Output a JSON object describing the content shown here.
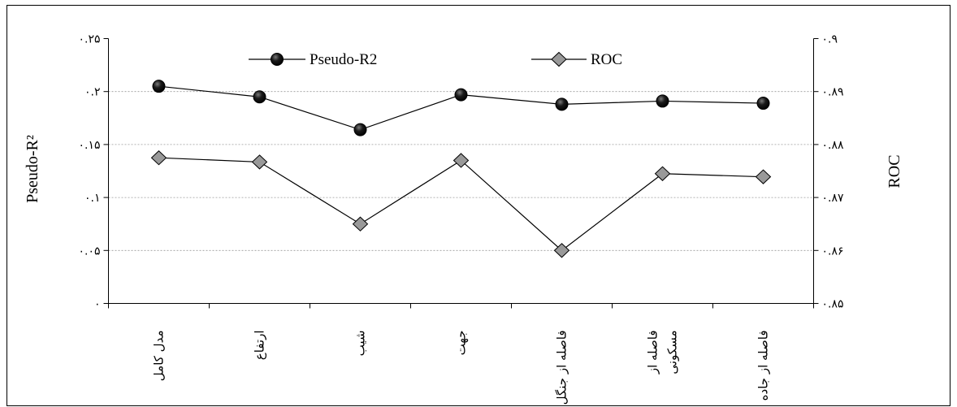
{
  "chart_data": {
    "type": "line",
    "categories": [
      "مدل کامل",
      "ارتفاع",
      "شیب",
      "جهت",
      "فاصله از جنگل",
      "فاصله از\nمسکونی",
      "فاصله از جاده"
    ],
    "series": [
      {
        "name": "Pseudo-R2",
        "axis": "left",
        "marker": "circle",
        "marker_fill": "#000000",
        "line_color": "#000000",
        "values": [
          0.205,
          0.195,
          0.164,
          0.197,
          0.188,
          0.191,
          0.189
        ]
      },
      {
        "name": "ROC",
        "axis": "right",
        "marker": "diamond",
        "marker_fill": "#999999",
        "line_color": "#000000",
        "values": [
          0.8775,
          0.8767,
          0.865,
          0.877,
          0.86,
          0.8745,
          0.8739
        ]
      }
    ],
    "ylabel": "Pseudo-R²",
    "y2label": "ROC",
    "ylim": [
      0,
      0.25
    ],
    "y2lim": [
      0.85,
      0.9
    ],
    "yticks": [
      0,
      0.05,
      0.1,
      0.15,
      0.2,
      0.25
    ],
    "ytick_labels": [
      "۰",
      "۰.۰۵",
      "۰.۱",
      "۰.۱۵",
      "۰.۲",
      "۰.۲۵"
    ],
    "y2ticks": [
      0.85,
      0.86,
      0.87,
      0.88,
      0.89,
      0.9
    ],
    "y2tick_labels": [
      "۰.۸۵",
      "۰.۸۶",
      "۰.۸۷",
      "۰.۸۸",
      "۰.۸۹",
      "۰.۹"
    ],
    "grid": true,
    "legend": "top"
  }
}
